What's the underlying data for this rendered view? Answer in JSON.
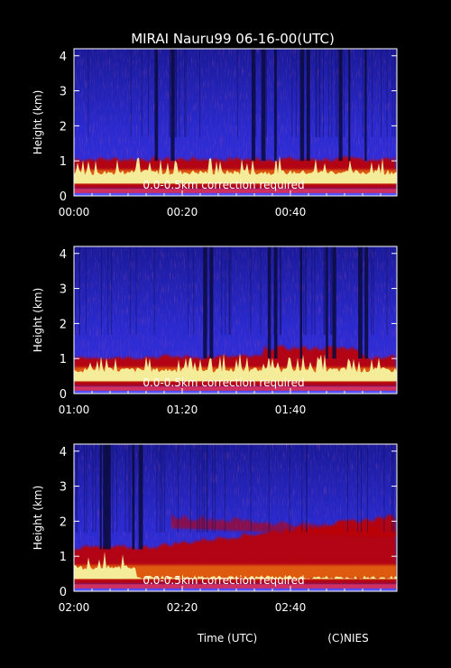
{
  "title": "MIRAI Nauru99 06-16-00(UTC)",
  "xlabel": "Time (UTC)",
  "credit": "(C)NIES",
  "colors": {
    "background": "#000000",
    "axis": "#ffffff",
    "text": "#ffffff",
    "sky": "#2a2acf",
    "deep_blue": "#0a0a3a",
    "aerosol": "#c00000",
    "cloud": "#f4f4a0"
  },
  "chart_data": [
    {
      "type": "heatmap",
      "ylabel": "Height (km)",
      "ylim": [
        0,
        4.2
      ],
      "yticks": [
        "0",
        "1",
        "2",
        "3",
        "4"
      ],
      "xticks": [
        "00:00",
        "00:20",
        "00:40"
      ],
      "annotation": "0.0-0.5km correction required"
    },
    {
      "type": "heatmap",
      "ylabel": "Height (km)",
      "ylim": [
        0,
        4.2
      ],
      "yticks": [
        "0",
        "1",
        "2",
        "3",
        "4"
      ],
      "xticks": [
        "01:00",
        "01:20",
        "01:40"
      ],
      "annotation": "0.0-0.5km correction required"
    },
    {
      "type": "heatmap",
      "ylabel": "Height (km)",
      "ylim": [
        0,
        4.2
      ],
      "yticks": [
        "0",
        "1",
        "2",
        "3",
        "4"
      ],
      "xticks": [
        "02:00",
        "02:20",
        "02:40"
      ],
      "annotation": "0.0-0.5km correction required"
    }
  ]
}
